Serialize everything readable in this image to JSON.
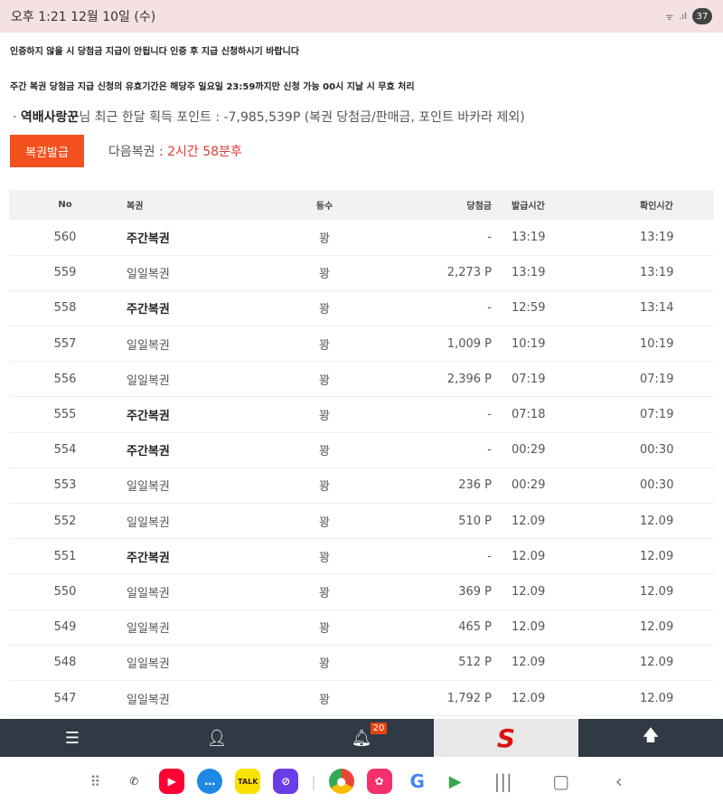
{
  "status": {
    "time": "오후 1:21  12월 10일 (수)",
    "battery": "37"
  },
  "notices": [
    "인증하지 않을 시 당첨금 지급이 안됩니다 인증 후 지급 신청하시기 바랍니다",
    "주간 복권 당첨금 지급 신청의 유효기간은 해당주 일요일 23:59까지만 신청 가능 00시 지날 시 무효 처리"
  ],
  "info": {
    "bullet": "·",
    "user": "역배사랑꾼",
    "text": "님 최근 한달 획득 포인트 : -7,985,539P (복권 당첨금/판매금, 포인트 바카라 제외)"
  },
  "issue_button": "복권발급",
  "next": {
    "label": "다음복권 : ",
    "value": "2시간 58분후"
  },
  "table": {
    "headers": [
      "No",
      "복권",
      "등수",
      "당첨금",
      "발급시간",
      "확인시간"
    ],
    "rows": [
      [
        "560",
        "주간복권",
        "꽝",
        "-",
        "13:19",
        "13:19"
      ],
      [
        "559",
        "일일복권",
        "꽝",
        "2,273 P",
        "13:19",
        "13:19"
      ],
      [
        "558",
        "주간복권",
        "꽝",
        "-",
        "12:59",
        "13:14"
      ],
      [
        "557",
        "일일복권",
        "꽝",
        "1,009 P",
        "10:19",
        "10:19"
      ],
      [
        "556",
        "일일복권",
        "꽝",
        "2,396 P",
        "07:19",
        "07:19"
      ],
      [
        "555",
        "주간복권",
        "꽝",
        "-",
        "07:18",
        "07:19"
      ],
      [
        "554",
        "주간복권",
        "꽝",
        "-",
        "00:29",
        "00:30"
      ],
      [
        "553",
        "일일복권",
        "꽝",
        "236 P",
        "00:29",
        "00:30"
      ],
      [
        "552",
        "일일복권",
        "꽝",
        "510 P",
        "12.09",
        "12.09"
      ],
      [
        "551",
        "주간복권",
        "꽝",
        "-",
        "12.09",
        "12.09"
      ],
      [
        "550",
        "일일복권",
        "꽝",
        "369 P",
        "12.09",
        "12.09"
      ],
      [
        "549",
        "일일복권",
        "꽝",
        "465 P",
        "12.09",
        "12.09"
      ],
      [
        "548",
        "일일복권",
        "꽝",
        "512 P",
        "12.09",
        "12.09"
      ],
      [
        "547",
        "일일복권",
        "꽝",
        "1,792 P",
        "12.09",
        "12.09"
      ]
    ]
  },
  "bottom_bar": {
    "notification_count": "20",
    "logo": "S"
  },
  "dock": {
    "kakao": "TALK",
    "google": "G"
  },
  "colors": {
    "accent": "#f4511e",
    "red": "#e53935",
    "bar": "#2f3a44"
  }
}
